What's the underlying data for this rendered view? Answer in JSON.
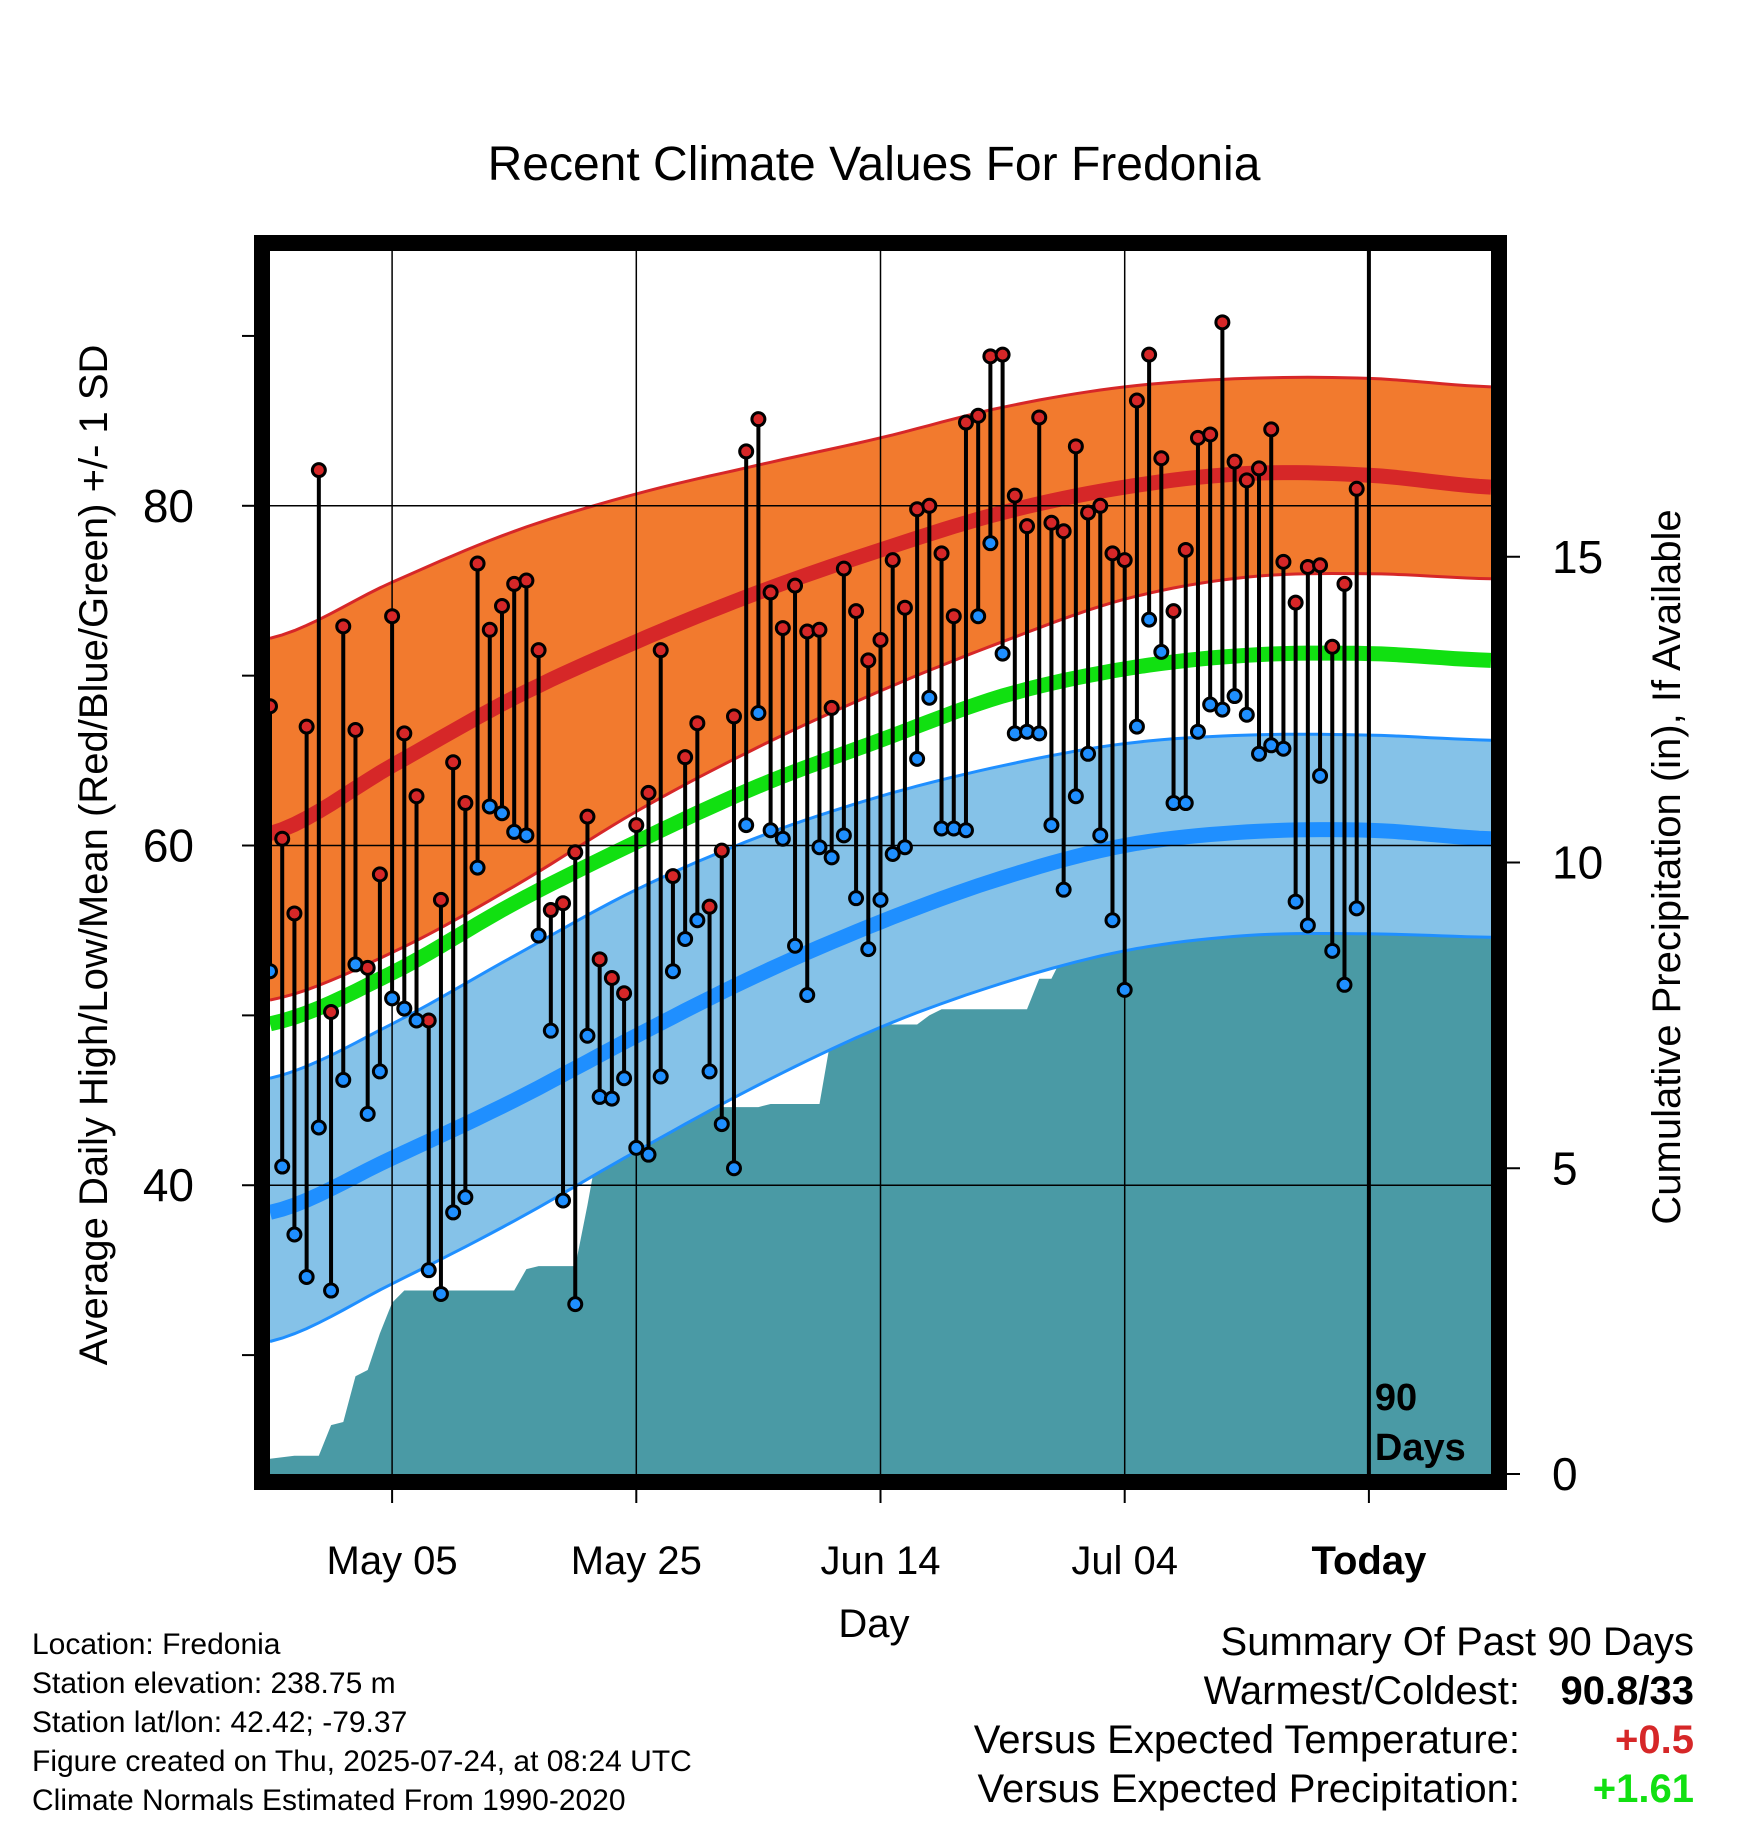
{
  "chart_data": {
    "type": "line",
    "title": "Recent Climate Values For Fredonia",
    "xlabel": "Day",
    "ylabel": "Average Daily High/Low/Mean (Red/Blue/Green) +/- 1 SD",
    "y2label": "Cumulative Precipitation (in), If Available",
    "x_tick_labels": [
      "May 05",
      "May 25",
      "Jun 14",
      "Jul 04",
      "Today"
    ],
    "x_tick_days": [
      10,
      30,
      50,
      70,
      90
    ],
    "xlim": [
      0,
      100
    ],
    "ylim": [
      23,
      95
    ],
    "y_tick_labels": [
      "40",
      "60",
      "80"
    ],
    "y_ticks": [
      40,
      60,
      80
    ],
    "y_minor_ticks": [
      30,
      50,
      70,
      90
    ],
    "y2lim": [
      0,
      20
    ],
    "y2_tick_labels": [
      "0",
      "5",
      "10",
      "15"
    ],
    "y2_ticks": [
      0,
      5,
      10,
      15
    ],
    "grid": true,
    "today_marker": {
      "day": 90,
      "label_line1": "90",
      "label_line2": "Days"
    },
    "colors": {
      "high_band": "#f27a2e",
      "high_line": "#d62728",
      "low_band": "#85c2e8",
      "low_line": "#1f8fff",
      "mean_line": "#11e011",
      "precip": "#4a9aa5",
      "high_point": "#d62728",
      "low_point": "#1f8fff"
    },
    "normals": {
      "days": [
        0,
        10,
        20,
        30,
        40,
        50,
        60,
        70,
        80,
        90,
        100
      ],
      "high_mean": [
        60.7,
        64.7,
        68.7,
        72.0,
        74.9,
        77.4,
        79.6,
        81.1,
        81.9,
        81.8,
        81.1
      ],
      "high_upper": [
        72.2,
        75.5,
        78.5,
        80.7,
        82.4,
        84.0,
        85.8,
        87.0,
        87.5,
        87.5,
        87.0
      ],
      "high_lower": [
        50.9,
        53.7,
        57.6,
        62.0,
        65.8,
        69.1,
        72.0,
        74.5,
        75.8,
        76.0,
        75.7
      ],
      "mean_mean": [
        49.5,
        52.5,
        56.6,
        60.2,
        63.5,
        66.2,
        68.8,
        70.4,
        71.2,
        71.3,
        70.9
      ],
      "low_mean": [
        38.4,
        41.6,
        45.0,
        48.8,
        52.4,
        55.5,
        58.1,
        60.0,
        60.8,
        60.9,
        60.4
      ],
      "low_upper": [
        46.3,
        49.5,
        53.5,
        57.4,
        60.5,
        62.9,
        64.7,
        66.0,
        66.5,
        66.5,
        66.2
      ],
      "low_lower": [
        30.8,
        34.2,
        37.9,
        42.0,
        45.9,
        49.3,
        51.9,
        53.8,
        54.7,
        54.8,
        54.6
      ]
    },
    "series": [
      {
        "name": "High",
        "days": [
          0,
          1,
          2,
          3,
          4,
          5,
          6,
          7,
          8,
          9,
          10,
          11,
          12,
          13,
          14,
          15,
          16,
          17,
          18,
          19,
          20,
          21,
          22,
          23,
          24,
          25,
          26,
          27,
          28,
          29,
          30,
          31,
          32,
          33,
          34,
          35,
          36,
          37,
          38,
          39,
          40,
          41,
          42,
          43,
          44,
          45,
          46,
          47,
          48,
          49,
          50,
          51,
          52,
          53,
          54,
          55,
          56,
          57,
          58,
          59,
          60,
          61,
          62,
          63,
          64,
          65,
          66,
          67,
          68,
          69,
          70,
          71,
          72,
          73,
          74,
          75,
          76,
          77,
          78,
          79,
          80,
          81,
          82,
          83,
          84,
          85,
          86,
          87,
          88,
          89
        ],
        "values": [
          68.2,
          60.4,
          56.0,
          67.0,
          82.1,
          50.2,
          72.9,
          66.8,
          52.8,
          58.3,
          73.5,
          66.6,
          62.9,
          49.7,
          56.8,
          64.9,
          62.5,
          76.6,
          72.7,
          74.1,
          75.4,
          75.6,
          71.5,
          56.2,
          56.6,
          59.6,
          61.7,
          53.3,
          52.2,
          51.3,
          61.2,
          63.1,
          71.5,
          58.2,
          65.2,
          67.2,
          56.4,
          59.7,
          67.6,
          83.2,
          85.1,
          74.9,
          72.8,
          75.3,
          72.6,
          72.7,
          68.1,
          76.3,
          73.8,
          70.9,
          72.1,
          76.8,
          74.0,
          79.8,
          80.0,
          77.2,
          73.5,
          84.9,
          85.3,
          88.8,
          88.9,
          80.6,
          78.8,
          85.2,
          79.0,
          78.5,
          83.5,
          79.6,
          80.0,
          77.2,
          76.8,
          86.2,
          88.9,
          82.8,
          73.8,
          77.4,
          84.0,
          84.2,
          90.8,
          82.6,
          81.5,
          82.2,
          84.5,
          76.7,
          74.3,
          76.4,
          76.5,
          71.7,
          75.4,
          81.0
        ]
      },
      {
        "name": "Low",
        "days": [
          0,
          1,
          2,
          3,
          4,
          5,
          6,
          7,
          8,
          9,
          10,
          11,
          12,
          13,
          14,
          15,
          16,
          17,
          18,
          19,
          20,
          21,
          22,
          23,
          24,
          25,
          26,
          27,
          28,
          29,
          30,
          31,
          32,
          33,
          34,
          35,
          36,
          37,
          38,
          39,
          40,
          41,
          42,
          43,
          44,
          45,
          46,
          47,
          48,
          49,
          50,
          51,
          52,
          53,
          54,
          55,
          56,
          57,
          58,
          59,
          60,
          61,
          62,
          63,
          64,
          65,
          66,
          67,
          68,
          69,
          70,
          71,
          72,
          73,
          74,
          75,
          76,
          77,
          78,
          79,
          80,
          81,
          82,
          83,
          84,
          85,
          86,
          87,
          88,
          89
        ],
        "values": [
          52.6,
          41.1,
          37.1,
          34.6,
          43.4,
          33.8,
          46.2,
          53.0,
          44.2,
          46.7,
          51.0,
          50.4,
          49.7,
          35.0,
          33.6,
          38.4,
          39.3,
          58.7,
          62.3,
          61.9,
          60.8,
          60.6,
          54.7,
          49.1,
          39.1,
          33.0,
          48.8,
          45.2,
          45.1,
          46.3,
          42.2,
          41.8,
          46.4,
          52.6,
          54.5,
          55.6,
          46.7,
          43.6,
          41.0,
          61.2,
          67.8,
          60.9,
          60.4,
          54.1,
          51.2,
          59.9,
          59.3,
          60.6,
          56.9,
          53.9,
          56.8,
          59.5,
          59.9,
          65.1,
          68.7,
          61.0,
          61.0,
          60.9,
          73.5,
          77.8,
          71.3,
          66.6,
          66.7,
          66.6,
          61.2,
          57.4,
          62.9,
          65.4,
          60.6,
          55.6,
          51.5,
          67.0,
          73.3,
          71.4,
          62.5,
          62.5,
          66.7,
          68.3,
          68.0,
          68.8,
          67.7,
          65.4,
          65.9,
          65.7,
          56.7,
          55.3,
          64.1,
          53.8,
          51.8,
          56.3
        ]
      },
      {
        "name": "Cumulative Precipitation",
        "days": [
          0,
          2,
          4,
          5,
          6,
          7,
          8,
          9,
          10,
          11,
          12,
          16,
          17,
          18,
          19,
          20,
          21,
          22,
          23,
          24,
          25,
          26,
          27,
          28,
          29,
          30,
          31,
          32,
          33,
          34,
          35,
          36,
          37,
          38,
          39,
          40,
          41,
          42,
          43,
          44,
          45,
          46,
          47,
          48,
          49,
          50,
          51,
          52,
          53,
          54,
          55,
          56,
          57,
          58,
          59,
          60,
          61,
          62,
          63,
          64,
          65,
          66,
          67,
          68,
          69,
          70,
          71,
          72,
          73,
          74,
          75,
          76,
          77,
          78,
          79,
          80,
          81,
          82,
          83,
          84,
          85,
          86,
          87,
          88,
          89,
          90,
          100
        ],
        "values": [
          0.25,
          0.3,
          0.3,
          0.8,
          0.85,
          1.6,
          1.7,
          2.3,
          2.8,
          3.0,
          3.0,
          3.0,
          3.0,
          3.0,
          3.0,
          3.0,
          3.35,
          3.4,
          3.4,
          3.4,
          3.4,
          4.4,
          5.5,
          5.6,
          5.6,
          5.6,
          5.6,
          5.6,
          5.8,
          5.8,
          5.9,
          6.0,
          6.0,
          6.0,
          6.0,
          6.0,
          6.05,
          6.05,
          6.05,
          6.05,
          6.05,
          7.2,
          7.2,
          7.2,
          7.2,
          7.35,
          7.35,
          7.35,
          7.35,
          7.5,
          7.6,
          7.6,
          7.6,
          7.6,
          7.6,
          7.6,
          7.6,
          7.6,
          8.1,
          8.1,
          8.5,
          8.5,
          8.8,
          8.8,
          8.8,
          9.0,
          9.0,
          9.0,
          9.0,
          9.05,
          9.05,
          9.1,
          9.4,
          9.5,
          9.6,
          10.2,
          10.2,
          10.2,
          10.65,
          10.9,
          10.9,
          10.9,
          11.4,
          11.4,
          11.4,
          11.4,
          11.4
        ]
      }
    ]
  },
  "footer": {
    "location": "Location: Fredonia",
    "elevation": "Station elevation: 238.75 m",
    "latlon": "Station lat/lon: 42.42; -79.37",
    "created": "Figure created on Thu, 2025-07-24, at 08:24 UTC",
    "normals": "Climate Normals Estimated From 1990-2020"
  },
  "summary": {
    "title": "Summary Of Past 90 Days",
    "warmest_label": "Warmest/Coldest:",
    "warmest_value": "90.8/33",
    "temp_label": "Versus Expected Temperature:",
    "temp_value": "+0.5",
    "temp_color": "#d62728",
    "precip_label": "Versus Expected Precipitation:",
    "precip_value": "+1.61",
    "precip_color": "#11e011"
  }
}
